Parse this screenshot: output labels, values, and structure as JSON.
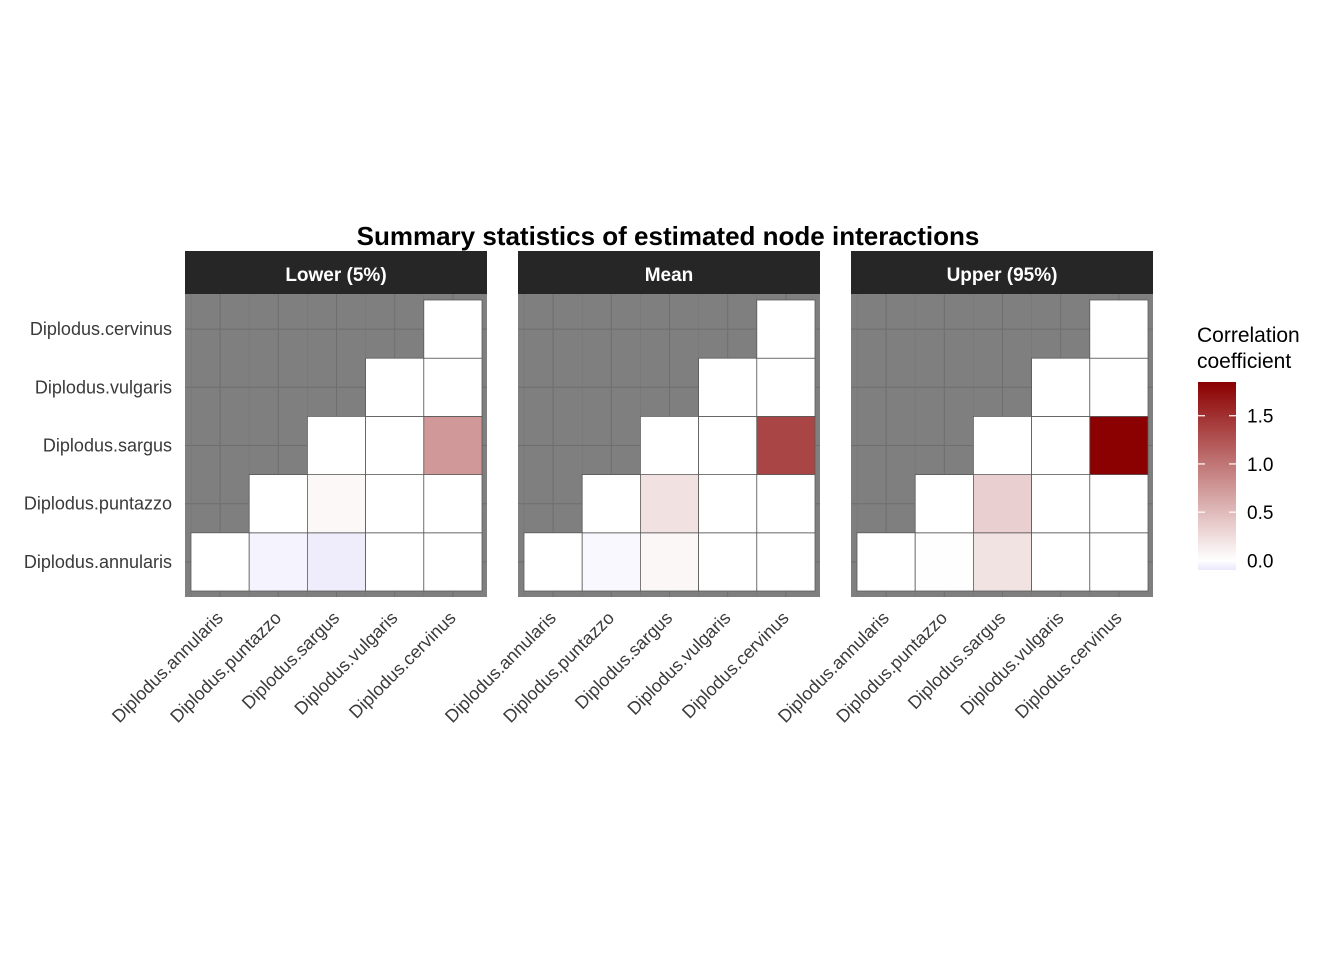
{
  "chart_data": {
    "type": "heatmap",
    "title": "Summary statistics of estimated node interactions",
    "species": [
      "Diplodus.annularis",
      "Diplodus.puntazzo",
      "Diplodus.sargus",
      "Diplodus.vulgaris",
      "Diplodus.cervinus"
    ],
    "panels": [
      {
        "name": "Lower (5%)",
        "cells": [
          {
            "x": "Diplodus.annularis",
            "y": "Diplodus.annularis",
            "value": 0.0
          },
          {
            "x": "Diplodus.puntazzo",
            "y": "Diplodus.annularis",
            "value": -0.05
          },
          {
            "x": "Diplodus.sargus",
            "y": "Diplodus.annularis",
            "value": -0.08
          },
          {
            "x": "Diplodus.vulgaris",
            "y": "Diplodus.annularis",
            "value": 0.0
          },
          {
            "x": "Diplodus.cervinus",
            "y": "Diplodus.annularis",
            "value": 0.0
          },
          {
            "x": "Diplodus.puntazzo",
            "y": "Diplodus.puntazzo",
            "value": 0.0
          },
          {
            "x": "Diplodus.sargus",
            "y": "Diplodus.puntazzo",
            "value": 0.05
          },
          {
            "x": "Diplodus.vulgaris",
            "y": "Diplodus.puntazzo",
            "value": 0.0
          },
          {
            "x": "Diplodus.cervinus",
            "y": "Diplodus.puntazzo",
            "value": 0.0
          },
          {
            "x": "Diplodus.sargus",
            "y": "Diplodus.sargus",
            "value": 0.0
          },
          {
            "x": "Diplodus.vulgaris",
            "y": "Diplodus.sargus",
            "value": 0.0
          },
          {
            "x": "Diplodus.cervinus",
            "y": "Diplodus.sargus",
            "value": 0.75
          },
          {
            "x": "Diplodus.vulgaris",
            "y": "Diplodus.vulgaris",
            "value": 0.0
          },
          {
            "x": "Diplodus.cervinus",
            "y": "Diplodus.vulgaris",
            "value": 0.0
          },
          {
            "x": "Diplodus.cervinus",
            "y": "Diplodus.cervinus",
            "value": 0.0
          }
        ]
      },
      {
        "name": "Mean",
        "cells": [
          {
            "x": "Diplodus.annularis",
            "y": "Diplodus.annularis",
            "value": 0.0
          },
          {
            "x": "Diplodus.puntazzo",
            "y": "Diplodus.annularis",
            "value": -0.03
          },
          {
            "x": "Diplodus.sargus",
            "y": "Diplodus.annularis",
            "value": 0.06
          },
          {
            "x": "Diplodus.vulgaris",
            "y": "Diplodus.annularis",
            "value": 0.0
          },
          {
            "x": "Diplodus.cervinus",
            "y": "Diplodus.annularis",
            "value": 0.0
          },
          {
            "x": "Diplodus.puntazzo",
            "y": "Diplodus.puntazzo",
            "value": 0.0
          },
          {
            "x": "Diplodus.sargus",
            "y": "Diplodus.puntazzo",
            "value": 0.22
          },
          {
            "x": "Diplodus.vulgaris",
            "y": "Diplodus.puntazzo",
            "value": 0.0
          },
          {
            "x": "Diplodus.cervinus",
            "y": "Diplodus.puntazzo",
            "value": 0.0
          },
          {
            "x": "Diplodus.sargus",
            "y": "Diplodus.sargus",
            "value": 0.0
          },
          {
            "x": "Diplodus.vulgaris",
            "y": "Diplodus.sargus",
            "value": 0.0
          },
          {
            "x": "Diplodus.cervinus",
            "y": "Diplodus.sargus",
            "value": 1.35
          },
          {
            "x": "Diplodus.vulgaris",
            "y": "Diplodus.vulgaris",
            "value": 0.0
          },
          {
            "x": "Diplodus.cervinus",
            "y": "Diplodus.vulgaris",
            "value": 0.0
          },
          {
            "x": "Diplodus.cervinus",
            "y": "Diplodus.cervinus",
            "value": 0.0
          }
        ]
      },
      {
        "name": "Upper (95%)",
        "cells": [
          {
            "x": "Diplodus.annularis",
            "y": "Diplodus.annularis",
            "value": 0.0
          },
          {
            "x": "Diplodus.puntazzo",
            "y": "Diplodus.annularis",
            "value": 0.01
          },
          {
            "x": "Diplodus.sargus",
            "y": "Diplodus.annularis",
            "value": 0.2
          },
          {
            "x": "Diplodus.vulgaris",
            "y": "Diplodus.annularis",
            "value": 0.0
          },
          {
            "x": "Diplodus.cervinus",
            "y": "Diplodus.annularis",
            "value": 0.0
          },
          {
            "x": "Diplodus.puntazzo",
            "y": "Diplodus.puntazzo",
            "value": 0.0
          },
          {
            "x": "Diplodus.sargus",
            "y": "Diplodus.puntazzo",
            "value": 0.35
          },
          {
            "x": "Diplodus.vulgaris",
            "y": "Diplodus.puntazzo",
            "value": 0.0
          },
          {
            "x": "Diplodus.cervinus",
            "y": "Diplodus.puntazzo",
            "value": 0.0
          },
          {
            "x": "Diplodus.sargus",
            "y": "Diplodus.sargus",
            "value": 0.0
          },
          {
            "x": "Diplodus.vulgaris",
            "y": "Diplodus.sargus",
            "value": 0.0
          },
          {
            "x": "Diplodus.cervinus",
            "y": "Diplodus.sargus",
            "value": 1.85
          },
          {
            "x": "Diplodus.vulgaris",
            "y": "Diplodus.vulgaris",
            "value": 0.0
          },
          {
            "x": "Diplodus.cervinus",
            "y": "Diplodus.vulgaris",
            "value": 0.0
          },
          {
            "x": "Diplodus.cervinus",
            "y": "Diplodus.cervinus",
            "value": 0.0
          }
        ]
      }
    ],
    "legend": {
      "title_lines": [
        "Correlation",
        "coefficient"
      ],
      "ticks": [
        0.0,
        0.5,
        1.0,
        1.5
      ],
      "tick_labels": [
        "0.0",
        "0.5",
        "1.0",
        "1.5"
      ],
      "range": [
        -0.1,
        1.85
      ],
      "placement": "right"
    },
    "colors": {
      "low": "#ebe7fb",
      "mid": "#ffffff",
      "high": "#8b0000",
      "panel_background": "#7f7f7f",
      "strip_background": "#262626"
    }
  }
}
